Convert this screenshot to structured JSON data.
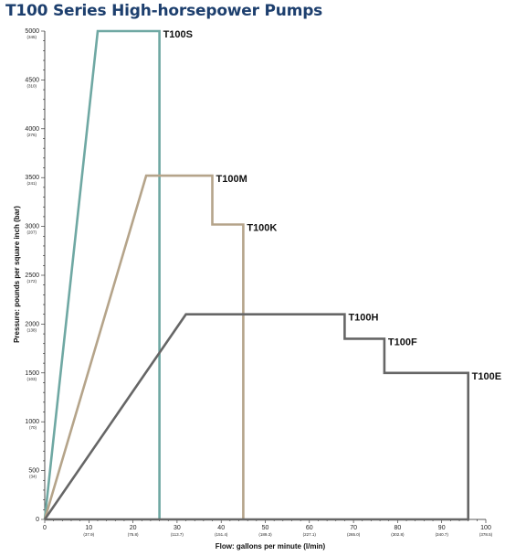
{
  "chart_data": {
    "type": "line",
    "title": "T100 Series High-horsepower Pumps",
    "xlabel": "Flow: gallons per minute (l/min)",
    "ylabel": "Pressure: pounds per square inch (bar)",
    "xlim": [
      0,
      100
    ],
    "ylim": [
      0,
      5000
    ],
    "grid": false,
    "x_ticks": [
      {
        "value": 0,
        "label": "0",
        "sub": ""
      },
      {
        "value": 10,
        "label": "10",
        "sub": "(37.9)"
      },
      {
        "value": 20,
        "label": "20",
        "sub": "(75.8)"
      },
      {
        "value": 30,
        "label": "30",
        "sub": "(113.7)"
      },
      {
        "value": 40,
        "label": "40",
        "sub": "(151.4)"
      },
      {
        "value": 50,
        "label": "50",
        "sub": "(189.3)"
      },
      {
        "value": 60,
        "label": "60",
        "sub": "(227.1)"
      },
      {
        "value": 70,
        "label": "70",
        "sub": "(265.0)"
      },
      {
        "value": 80,
        "label": "80",
        "sub": "(302.8)"
      },
      {
        "value": 90,
        "label": "90",
        "sub": "(340.7)"
      },
      {
        "value": 100,
        "label": "100",
        "sub": "(378.5)"
      }
    ],
    "y_ticks": [
      {
        "value": 0,
        "label": "0",
        "sub": ""
      },
      {
        "value": 500,
        "label": "500",
        "sub": "(34)"
      },
      {
        "value": 1000,
        "label": "1000",
        "sub": "(70)"
      },
      {
        "value": 1500,
        "label": "1500",
        "sub": "(103)"
      },
      {
        "value": 2000,
        "label": "2000",
        "sub": "(138)"
      },
      {
        "value": 2500,
        "label": "2500",
        "sub": "(172)"
      },
      {
        "value": 3000,
        "label": "3000",
        "sub": "(207)"
      },
      {
        "value": 3500,
        "label": "3500",
        "sub": "(241)"
      },
      {
        "value": 4000,
        "label": "4000",
        "sub": "(276)"
      },
      {
        "value": 4500,
        "label": "4500",
        "sub": "(310)"
      },
      {
        "value": 5000,
        "label": "5000",
        "sub": "(345)"
      }
    ],
    "series": [
      {
        "name": "T100S",
        "color": "#6fa8a3",
        "points": [
          [
            0,
            0
          ],
          [
            12,
            5000
          ],
          [
            26,
            5000
          ],
          [
            26,
            0
          ]
        ],
        "label_at": [
          26,
          5000
        ]
      },
      {
        "name": "T100M",
        "color": "#b5a48a",
        "points": [
          [
            0,
            0
          ],
          [
            23,
            3520
          ],
          [
            38,
            3520
          ],
          [
            38,
            3020
          ],
          [
            45,
            3020
          ],
          [
            45,
            0
          ]
        ],
        "label_at": [
          38,
          3520
        ]
      },
      {
        "name": "T100K",
        "color": "#b5a48a",
        "points": [
          [
            45,
            3020
          ]
        ],
        "label_at": [
          45,
          3020
        ]
      },
      {
        "name": "T100H",
        "color": "#666666",
        "points": [
          [
            0,
            0
          ],
          [
            32,
            2100
          ],
          [
            68,
            2100
          ],
          [
            68,
            1850
          ],
          [
            77,
            1850
          ],
          [
            77,
            1500
          ],
          [
            96,
            1500
          ],
          [
            96,
            0
          ],
          [
            0,
            0
          ]
        ],
        "label_at": [
          68,
          2100
        ]
      },
      {
        "name": "T100F",
        "color": "#666666",
        "points": [
          [
            77,
            1850
          ]
        ],
        "label_at": [
          77,
          1850
        ]
      },
      {
        "name": "T100E",
        "color": "#666666",
        "points": [
          [
            96,
            1500
          ]
        ],
        "label_at": [
          96,
          1500
        ]
      }
    ]
  }
}
